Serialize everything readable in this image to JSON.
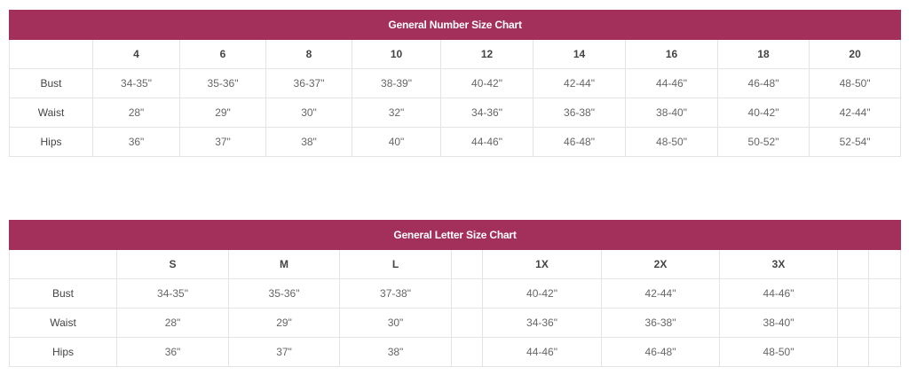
{
  "number_chart": {
    "title": "General Number Size Chart",
    "columns": [
      "",
      "4",
      "6",
      "8",
      "10",
      "12",
      "14",
      "16",
      "18",
      "20"
    ],
    "rows": [
      {
        "label": "Bust",
        "values": [
          "34-35\"",
          "35-36\"",
          "36-37\"",
          "38-39\"",
          "40-42\"",
          "42-44\"",
          "44-46\"",
          "46-48\"",
          "48-50\""
        ]
      },
      {
        "label": "Waist",
        "values": [
          "28\"",
          "29\"",
          "30\"",
          "32\"",
          "34-36\"",
          "36-38\"",
          "38-40\"",
          "40-42\"",
          "42-44\""
        ]
      },
      {
        "label": "Hips",
        "values": [
          "36\"",
          "37\"",
          "38\"",
          "40\"",
          "44-46\"",
          "46-48\"",
          "48-50\"",
          "50-52\"",
          "52-54\""
        ]
      }
    ]
  },
  "letter_chart": {
    "title": "General Letter Size Chart",
    "columns": [
      "",
      "S",
      "M",
      "L",
      "",
      "1X",
      "2X",
      "3X",
      "",
      ""
    ],
    "rows": [
      {
        "label": "Bust",
        "values": [
          "34-35\"",
          "35-36\"",
          "37-38\"",
          "",
          "40-42\"",
          "42-44\"",
          "44-46\"",
          "",
          ""
        ]
      },
      {
        "label": "Waist",
        "values": [
          "28\"",
          "29\"",
          "30\"",
          "",
          "34-36\"",
          "36-38\"",
          "38-40\"",
          "",
          ""
        ]
      },
      {
        "label": "Hips",
        "values": [
          "36\"",
          "37\"",
          "38\"",
          "",
          "44-46\"",
          "46-48\"",
          "48-50\"",
          "",
          ""
        ]
      }
    ]
  },
  "colors": {
    "header": "#a3305a"
  }
}
